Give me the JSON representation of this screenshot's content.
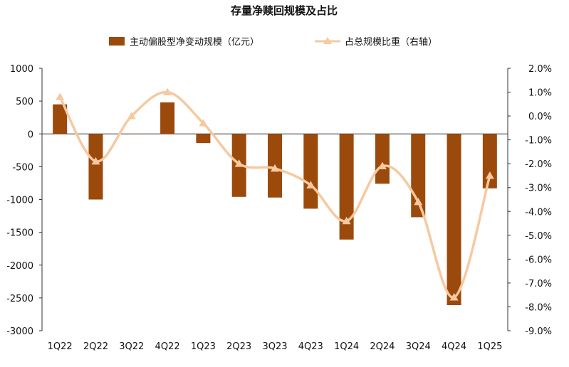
{
  "chart_data": {
    "type": "bar+line",
    "title": "存量净赎回规模及占比",
    "categories": [
      "1Q22",
      "2Q22",
      "3Q22",
      "4Q22",
      "1Q23",
      "2Q23",
      "3Q23",
      "4Q23",
      "1Q24",
      "2Q24",
      "3Q24",
      "4Q24",
      "1Q25"
    ],
    "series": [
      {
        "name": "主动偏股型净变动规模（亿元）",
        "kind": "bar",
        "axis": "left",
        "color": "#9C4A0C",
        "values": [
          450,
          -1000,
          0,
          480,
          -140,
          -960,
          -970,
          -1140,
          -1610,
          -760,
          -1270,
          -2610,
          -830
        ]
      },
      {
        "name": "占总规模比重（右轴）",
        "kind": "line",
        "axis": "right",
        "color": "#F6C9A0",
        "values": [
          0.8,
          -1.9,
          0.0,
          1.0,
          -0.3,
          -2.0,
          -2.2,
          -2.9,
          -4.4,
          -2.1,
          -3.6,
          -7.6,
          -2.5
        ]
      }
    ],
    "y_left": {
      "min": -3000,
      "max": 1000,
      "ticks": [
        1000,
        500,
        0,
        -500,
        -1000,
        -1500,
        -2000,
        -2500,
        -3000
      ]
    },
    "y_right": {
      "min": -9.0,
      "max": 2.0,
      "ticks": [
        2.0,
        1.0,
        0.0,
        -1.0,
        -2.0,
        -3.0,
        -4.0,
        -5.0,
        -6.0,
        -7.0,
        -8.0,
        -9.0
      ],
      "suffix": "%"
    },
    "legend_position": "top-center",
    "grid": false
  }
}
